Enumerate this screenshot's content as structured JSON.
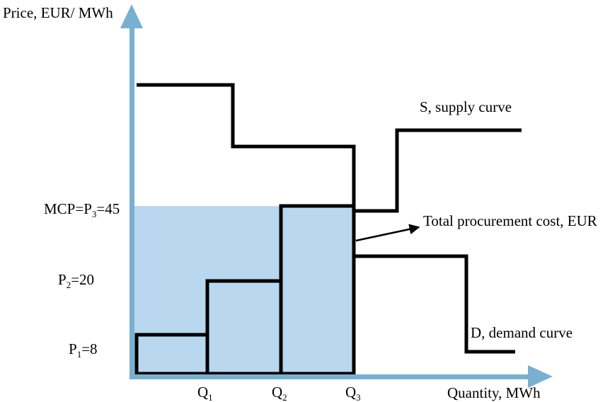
{
  "axes": {
    "y_label": "Price, EUR/ MWh",
    "x_label": "Quantity, MWh",
    "axis_color": "#7ab0cf"
  },
  "price_labels": {
    "mcp": {
      "prefix": "MCP=P",
      "sub": "3",
      "suffix": "=45"
    },
    "p2": {
      "prefix": "P",
      "sub": "2",
      "suffix": "=20"
    },
    "p1": {
      "prefix": "P",
      "sub": "1",
      "suffix": "=8"
    }
  },
  "quantity_labels": {
    "q1": {
      "prefix": "Q",
      "sub": "1"
    },
    "q2": {
      "prefix": "Q",
      "sub": "2"
    },
    "q3": {
      "prefix": "Q",
      "sub": "3"
    }
  },
  "curve_labels": {
    "supply": "S, supply curve",
    "demand": "D, demand curve",
    "cost": "Total procurement cost, EUR"
  },
  "colors": {
    "fill": "#b9d8ef",
    "line": "#000000"
  }
}
